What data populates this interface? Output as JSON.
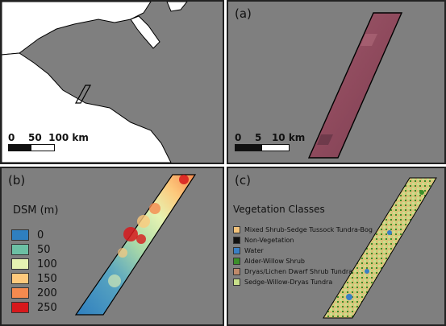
{
  "panels": {
    "overview": {
      "scalebar": "0    50  100 km",
      "colors": {
        "land": "#7f7f7f",
        "water": "#ffffff"
      }
    },
    "a": {
      "label": "(a)",
      "scalebar": "0    5   10 km",
      "description_colors": {
        "background": "#7f7f7f",
        "imagery": "#9a4f63"
      }
    },
    "b": {
      "label": "(b)",
      "legend_title": "DSM (m)",
      "legend": [
        {
          "label": "0",
          "color": "#2f7fbf"
        },
        {
          "label": "50",
          "color": "#6cc0a4"
        },
        {
          "label": "100",
          "color": "#e6f3b2"
        },
        {
          "label": "150",
          "color": "#fdc97c"
        },
        {
          "label": "200",
          "color": "#f58a4f"
        },
        {
          "label": "250",
          "color": "#d7191c"
        }
      ]
    },
    "c": {
      "label": "(c)",
      "legend_title": "Vegetation Classes",
      "legend": [
        {
          "label": "Mixed Shrub-Sedge Tussock Tundra-Bog",
          "color": "#f2c27a"
        },
        {
          "label": "Non-Vegetation",
          "color": "#111111"
        },
        {
          "label": "Water",
          "color": "#3a7fc4"
        },
        {
          "label": "Alder-Willow Shrub",
          "color": "#3c8f2a"
        },
        {
          "label": "Dryas/Lichen Dwarf Shrub Tundra",
          "color": "#c08a6a"
        },
        {
          "label": "Sedge-Willow-Dryas Tundra",
          "color": "#c8e08a"
        }
      ]
    }
  }
}
